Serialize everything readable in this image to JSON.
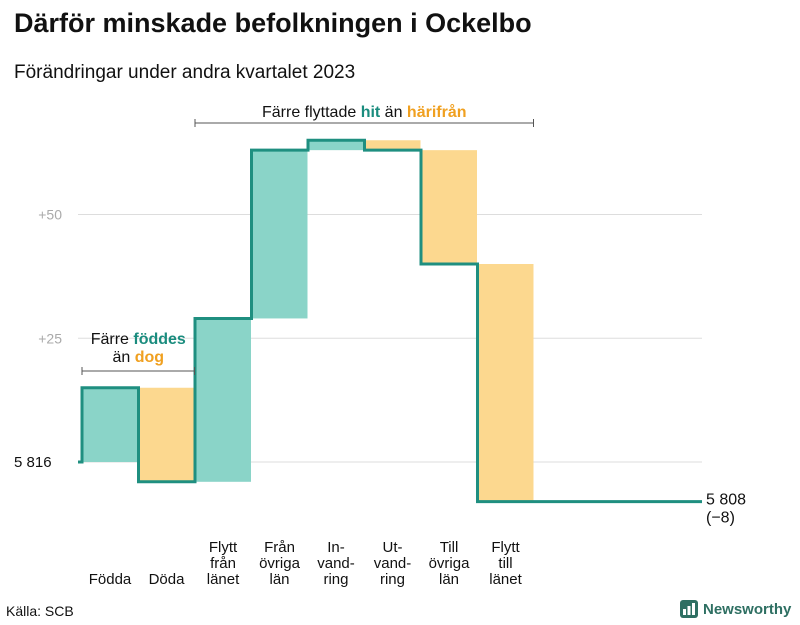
{
  "header": {
    "title": "Därför minskade befolkningen i Ockelbo",
    "subtitle": "Förändringar under andra kvartalet 2023"
  },
  "footer": {
    "source": "Källa: SCB",
    "brand": "Newsworthy"
  },
  "colors": {
    "increase": "#8ad4c8",
    "decrease": "#fcd88f",
    "line": "#1f8f80",
    "teal_text": "#1a8c7e",
    "orange_text": "#f0a020",
    "grid": "#dddddd",
    "tick": "#aaaaaa"
  },
  "chart_data": {
    "type": "waterfall",
    "title": "Därför minskade befolkningen i Ockelbo",
    "subtitle": "Förändringar under andra kvartalet 2023",
    "start": {
      "label": "5 816",
      "value": 5816
    },
    "end": {
      "label": "5 808",
      "value": 5808,
      "change_label": "(−8)"
    },
    "y_ticks": [
      {
        "label": "+25",
        "offset": 25
      },
      {
        "label": "+50",
        "offset": 50
      }
    ],
    "ylim_offset": [
      -10,
      68
    ],
    "steps": [
      {
        "label_lines": [
          "Födda"
        ],
        "value": 15,
        "kind": "increase"
      },
      {
        "label_lines": [
          "Döda"
        ],
        "value": -19,
        "kind": "decrease"
      },
      {
        "label_lines": [
          "Flytt",
          "från",
          "länet"
        ],
        "value": 33,
        "kind": "increase"
      },
      {
        "label_lines": [
          "Från",
          "övriga",
          "län"
        ],
        "value": 34,
        "kind": "increase"
      },
      {
        "label_lines": [
          "In-",
          "vand-",
          "ring"
        ],
        "value": 2,
        "kind": "increase"
      },
      {
        "label_lines": [
          "Ut-",
          "vand-",
          "ring"
        ],
        "value": -2,
        "kind": "decrease"
      },
      {
        "label_lines": [
          "Till",
          "övriga",
          "län"
        ],
        "value": -23,
        "kind": "decrease"
      },
      {
        "label_lines": [
          "Flytt",
          "till",
          "länet"
        ],
        "value": -48,
        "kind": "decrease"
      }
    ],
    "annotations": [
      {
        "lines": [
          [
            {
              "text": "Färre ",
              "style": "plain"
            },
            {
              "text": "föddes",
              "style": "teal"
            }
          ],
          [
            {
              "text": "än ",
              "style": "plain"
            },
            {
              "text": "dog",
              "style": "orange"
            }
          ]
        ],
        "from_step": 0,
        "to_step": 1
      },
      {
        "lines": [
          [
            {
              "text": "Färre flyttade ",
              "style": "plain"
            },
            {
              "text": "hit",
              "style": "teal"
            },
            {
              "text": " än ",
              "style": "plain"
            },
            {
              "text": "härifrån",
              "style": "orange"
            }
          ]
        ],
        "from_step": 2,
        "to_step": 7
      }
    ]
  }
}
